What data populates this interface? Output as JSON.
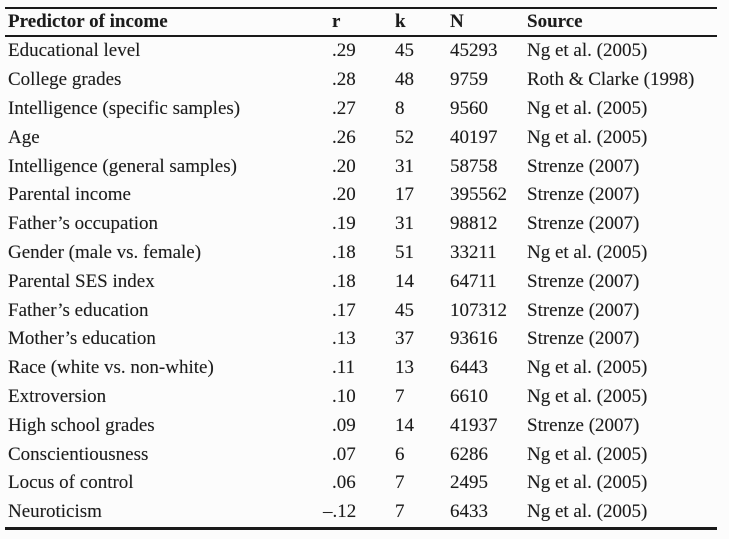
{
  "table": {
    "columns": [
      {
        "key": "predictor",
        "label": "Predictor of income"
      },
      {
        "key": "r",
        "label": "r"
      },
      {
        "key": "k",
        "label": "k"
      },
      {
        "key": "n",
        "label": "N"
      },
      {
        "key": "source",
        "label": "Source"
      }
    ],
    "rows": [
      {
        "predictor": "Educational level",
        "r": ".29",
        "k": "45",
        "n": "45293",
        "source": "Ng et al. (2005)"
      },
      {
        "predictor": "College grades",
        "r": ".28",
        "k": "48",
        "n": "9759",
        "source": "Roth & Clarke (1998)"
      },
      {
        "predictor": "Intelligence (specific samples)",
        "r": ".27",
        "k": "8",
        "n": "9560",
        "source": "Ng et al. (2005)"
      },
      {
        "predictor": "Age",
        "r": ".26",
        "k": "52",
        "n": "40197",
        "source": "Ng et al. (2005)"
      },
      {
        "predictor": "Intelligence (general samples)",
        "r": ".20",
        "k": "31",
        "n": "58758",
        "source": "Strenze (2007)"
      },
      {
        "predictor": "Parental income",
        "r": ".20",
        "k": "17",
        "n": "395562",
        "source": "Strenze (2007)"
      },
      {
        "predictor": "Father’s occupation",
        "r": ".19",
        "k": "31",
        "n": "98812",
        "source": "Strenze (2007)"
      },
      {
        "predictor": "Gender (male vs. female)",
        "r": ".18",
        "k": "51",
        "n": "33211",
        "source": "Ng et al. (2005)"
      },
      {
        "predictor": "Parental SES index",
        "r": ".18",
        "k": "14",
        "n": "64711",
        "source": "Strenze (2007)"
      },
      {
        "predictor": "Father’s education",
        "r": ".17",
        "k": "45",
        "n": "107312",
        "source": "Strenze (2007)"
      },
      {
        "predictor": "Mother’s education",
        "r": ".13",
        "k": "37",
        "n": "93616",
        "source": "Strenze (2007)"
      },
      {
        "predictor": "Race (white vs. non-white)",
        "r": ".11",
        "k": "13",
        "n": "6443",
        "source": "Ng et al. (2005)"
      },
      {
        "predictor": "Extroversion",
        "r": ".10",
        "k": "7",
        "n": "6610",
        "source": "Ng et al. (2005)"
      },
      {
        "predictor": "High school grades",
        "r": ".09",
        "k": "14",
        "n": "41937",
        "source": "Strenze (2007)"
      },
      {
        "predictor": "Conscientiousness",
        "r": ".07",
        "k": "6",
        "n": "6286",
        "source": "Ng et al. (2005)"
      },
      {
        "predictor": "Locus of control",
        "r": ".06",
        "k": "7",
        "n": "2495",
        "source": "Ng et al. (2005)"
      },
      {
        "predictor": "Neuroticism",
        "r": "–.12",
        "k": "7",
        "n": "6433",
        "source": "Ng et al. (2005)"
      }
    ]
  },
  "colors": {
    "text": "#1c1c1c",
    "rule": "#1a1a1a",
    "background": "#fcfcfc"
  }
}
